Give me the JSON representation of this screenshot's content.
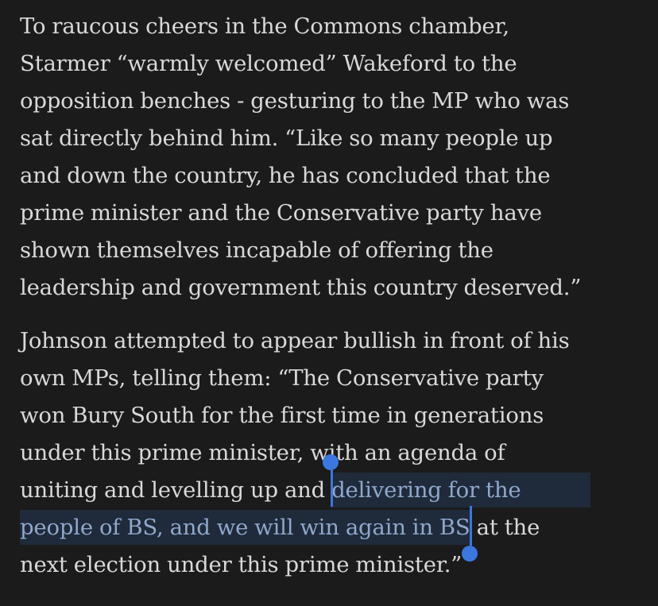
{
  "article": {
    "paragraph1": {
      "lines": [
        "To raucous cheers in the Commons chamber,",
        "Starmer “warmly welcomed” Wakeford to the",
        "opposition benches - gesturing to the MP who was",
        "sat directly behind him. “Like so many people up",
        "and down the country, he has concluded that the",
        "prime minister and the Conservative party have",
        "shown themselves incapable of offering the",
        "leadership and government this country deserved.”"
      ]
    },
    "paragraph2": {
      "lines": [
        "Johnson attempted to appear bullish in front of his",
        "own MPs, telling them: “The Conservative party",
        "won Bury South for the first time in generations",
        "under this prime minister, with an agenda of"
      ],
      "line5_before_selection": "uniting and levelling up and ",
      "selected_line1": "delivering for the",
      "selected_line2": "people of BS, and we will win again in BS",
      "line6_after_selection": " at the",
      "last_line": "next election under this prime minister.”"
    }
  },
  "selection": {
    "highlight_color": "#1f2a3a",
    "handle_color": "#3b77e0"
  }
}
